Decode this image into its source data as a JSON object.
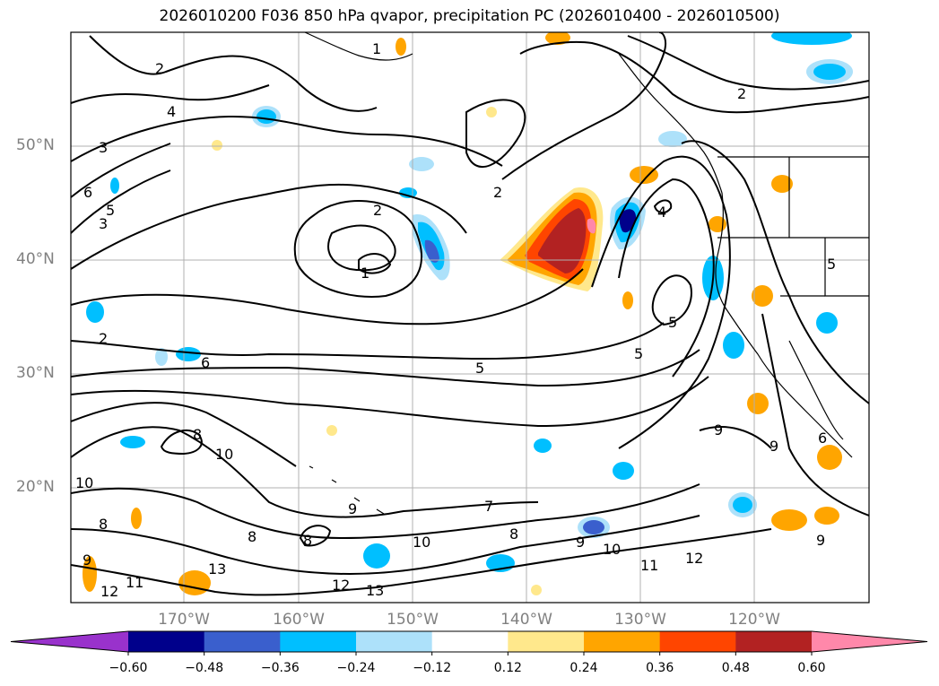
{
  "title": "2026010200 F036 850 hPa qvapor, precipitation PC (2026010400 - 2026010500)",
  "lat_labels": [
    {
      "text": "50°N",
      "lat": 50
    },
    {
      "text": "40°N",
      "lat": 40
    },
    {
      "text": "30°N",
      "lat": 30
    },
    {
      "text": "20°N",
      "lat": 20
    }
  ],
  "lon_labels": [
    {
      "text": "170°W",
      "lon": -170
    },
    {
      "text": "160°W",
      "lon": -160
    },
    {
      "text": "150°W",
      "lon": -150
    },
    {
      "text": "140°W",
      "lon": -140
    },
    {
      "text": "130°W",
      "lon": -130
    },
    {
      "text": "120°W",
      "lon": -120
    }
  ],
  "colorbar": {
    "ticks": [
      "−0.60",
      "−0.48",
      "−0.36",
      "−0.24",
      "−0.12",
      "0.12",
      "0.24",
      "0.36",
      "0.48",
      "0.60"
    ],
    "colors": [
      "#9932CC",
      "#00008B",
      "#3A5FCD",
      "#00BFFF",
      "#ADE1FA",
      "#FFFFFF",
      "#FFE88C",
      "#FFA500",
      "#FF4500",
      "#B22222",
      "#FF88AA"
    ]
  },
  "contour_labels": [
    "1",
    "2",
    "3",
    "4",
    "5",
    "6",
    "7",
    "8",
    "9",
    "10",
    "11",
    "12",
    "13"
  ]
}
